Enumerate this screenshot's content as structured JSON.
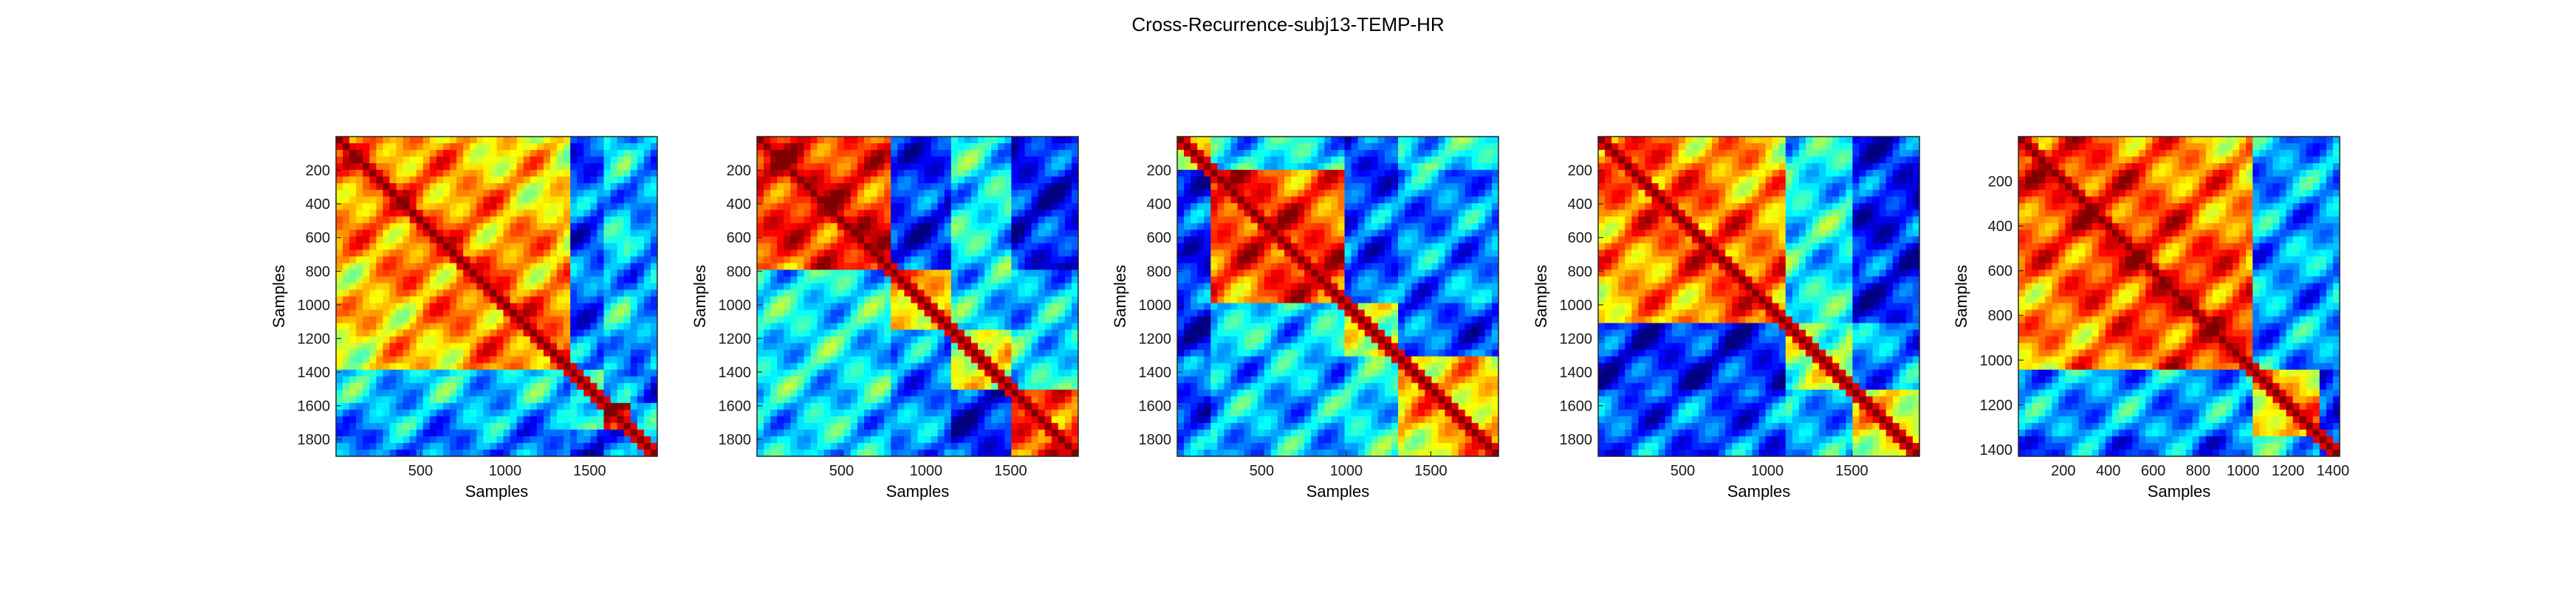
{
  "figure": {
    "title": "Cross-Recurrence-subj13-TEMP-HR"
  },
  "chart_data": [
    {
      "type": "heatmap",
      "title": "",
      "xlabel": "Samples",
      "ylabel": "Samples",
      "xlim": [
        0,
        1900
      ],
      "ylim": [
        0,
        1900
      ],
      "xticks": [
        500,
        1000,
        1500
      ],
      "yticks": [
        200,
        400,
        600,
        800,
        1000,
        1200,
        1400,
        1600,
        1800
      ],
      "colormap": "jet",
      "y_direction": "reversed",
      "blocks": [
        {
          "start": 0,
          "end": 1400,
          "level": 0.78
        },
        {
          "start": 1400,
          "end": 1580,
          "level": 0.45
        },
        {
          "start": 1580,
          "end": 1760,
          "level": 0.95
        },
        {
          "start": 1760,
          "end": 1900,
          "level": 0.35
        }
      ],
      "seed": 11
    },
    {
      "type": "heatmap",
      "title": "",
      "xlabel": "Samples",
      "ylabel": "Samples",
      "xlim": [
        0,
        1900
      ],
      "ylim": [
        0,
        1900
      ],
      "xticks": [
        500,
        1000,
        1500
      ],
      "yticks": [
        200,
        400,
        600,
        800,
        1000,
        1200,
        1400,
        1600,
        1800
      ],
      "colormap": "jet",
      "y_direction": "reversed",
      "blocks": [
        {
          "start": 0,
          "end": 800,
          "level": 0.88
        },
        {
          "start": 800,
          "end": 1150,
          "level": 0.7
        },
        {
          "start": 1150,
          "end": 1500,
          "level": 0.6
        },
        {
          "start": 1500,
          "end": 1900,
          "level": 0.82
        }
      ],
      "seed": 23
    },
    {
      "type": "heatmap",
      "title": "",
      "xlabel": "Samples",
      "ylabel": "Samples",
      "xlim": [
        0,
        1900
      ],
      "ylim": [
        0,
        1900
      ],
      "xticks": [
        500,
        1000,
        1500
      ],
      "yticks": [
        200,
        400,
        600,
        800,
        1000,
        1200,
        1400,
        1600,
        1800
      ],
      "colormap": "jet",
      "y_direction": "reversed",
      "blocks": [
        {
          "start": 0,
          "end": 200,
          "level": 0.6
        },
        {
          "start": 200,
          "end": 1000,
          "level": 0.85
        },
        {
          "start": 1000,
          "end": 1300,
          "level": 0.6
        },
        {
          "start": 1300,
          "end": 1900,
          "level": 0.7
        }
      ],
      "seed": 37
    },
    {
      "type": "heatmap",
      "title": "",
      "xlabel": "Samples",
      "ylabel": "Samples",
      "xlim": [
        0,
        1900
      ],
      "ylim": [
        0,
        1900
      ],
      "xticks": [
        500,
        1000,
        1500
      ],
      "yticks": [
        200,
        400,
        600,
        800,
        1000,
        1200,
        1400,
        1600,
        1800
      ],
      "colormap": "jet",
      "y_direction": "reversed",
      "blocks": [
        {
          "start": 0,
          "end": 1100,
          "level": 0.8
        },
        {
          "start": 1100,
          "end": 1500,
          "level": 0.55
        },
        {
          "start": 1500,
          "end": 1900,
          "level": 0.65
        }
      ],
      "seed": 53
    },
    {
      "type": "heatmap",
      "title": "",
      "xlabel": "Samples",
      "ylabel": "Samples",
      "xlim": [
        0,
        1430
      ],
      "ylim": [
        0,
        1430
      ],
      "xticks": [
        200,
        400,
        600,
        800,
        1000,
        1200,
        1400
      ],
      "yticks": [
        200,
        400,
        600,
        800,
        1000,
        1200,
        1400
      ],
      "colormap": "jet",
      "y_direction": "reversed",
      "blocks": [
        {
          "start": 0,
          "end": 1050,
          "level": 0.85
        },
        {
          "start": 1050,
          "end": 1330,
          "level": 0.7
        },
        {
          "start": 1330,
          "end": 1430,
          "level": 0.15
        }
      ],
      "seed": 71
    }
  ]
}
